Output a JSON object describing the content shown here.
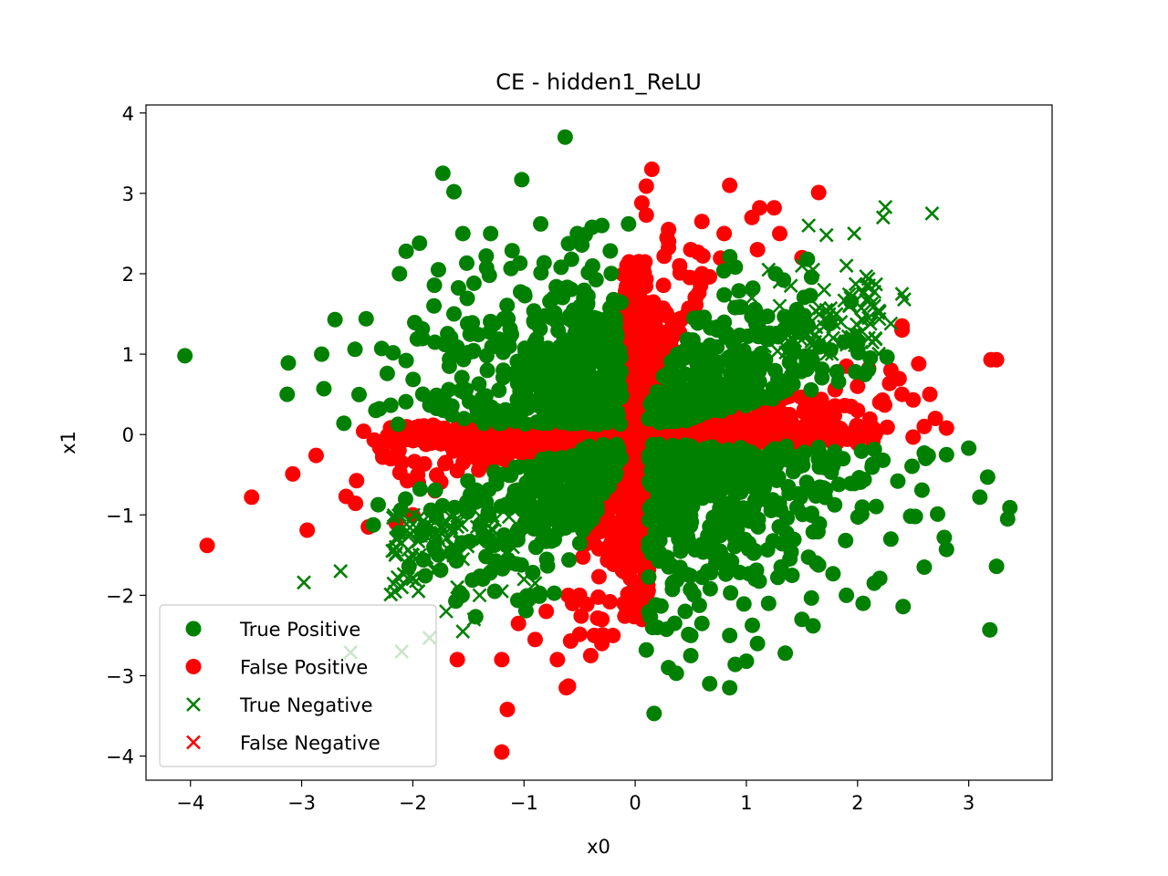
{
  "chart_data": {
    "type": "scatter",
    "title": "CE - hidden1_ReLU",
    "xlabel": "x0",
    "ylabel": "x1",
    "xlim": [
      -4.4,
      3.75
    ],
    "ylim": [
      -4.3,
      4.1
    ],
    "xticks": [
      -4,
      -3,
      -2,
      -1,
      0,
      1,
      2,
      3
    ],
    "yticks": [
      -4,
      -3,
      -2,
      -1,
      0,
      1,
      2,
      3,
      4
    ],
    "xtick_labels": [
      "−4",
      "−3",
      "−2",
      "−1",
      "0",
      "1",
      "2",
      "3"
    ],
    "ytick_labels": [
      "−4",
      "−3",
      "−2",
      "−1",
      "0",
      "1",
      "2",
      "3",
      "4"
    ],
    "grid": false,
    "legend_position": "lower-left",
    "series": [
      {
        "name": "True Positive",
        "marker": "circle",
        "color": "#008000",
        "points": [
          [
            -4.05,
            0.98
          ],
          [
            -0.63,
            3.7
          ],
          [
            -1.73,
            3.25
          ],
          [
            -1.63,
            3.02
          ],
          [
            -1.02,
            3.17
          ],
          [
            -3.12,
            0.89
          ],
          [
            -3.13,
            0.5
          ],
          [
            -2.82,
            1.0
          ],
          [
            -2.7,
            1.43
          ],
          [
            -2.8,
            0.57
          ],
          [
            -2.42,
            1.44
          ],
          [
            -2.62,
            0.14
          ],
          [
            -2.28,
            1.07
          ],
          [
            -2.23,
            0.76
          ],
          [
            -0.85,
            2.62
          ],
          [
            -0.52,
            2.5
          ],
          [
            -1.34,
            2.22
          ],
          [
            -2.06,
            2.28
          ],
          [
            -2.12,
            2.0
          ],
          [
            -1.77,
            2.05
          ],
          [
            -1.94,
            2.38
          ],
          [
            -1.55,
            2.5
          ],
          [
            -1.81,
            1.6
          ],
          [
            -2.3,
            0.32
          ],
          [
            -2.52,
            1.06
          ],
          [
            -2.06,
            0.92
          ],
          [
            -1.3,
            2.5
          ],
          [
            -0.3,
            2.6
          ],
          [
            -0.06,
            2.62
          ],
          [
            3.37,
            -0.91
          ],
          [
            3.25,
            -1.64
          ],
          [
            3.19,
            -2.43
          ],
          [
            3.17,
            -0.53
          ],
          [
            3.1,
            -0.78
          ],
          [
            3.35,
            -1.05
          ],
          [
            3.0,
            -0.17
          ],
          [
            2.8,
            -0.25
          ],
          [
            2.6,
            -0.23
          ],
          [
            2.78,
            -1.28
          ],
          [
            2.8,
            -1.43
          ],
          [
            2.72,
            -0.99
          ],
          [
            2.6,
            -1.65
          ],
          [
            2.41,
            -2.14
          ],
          [
            2.52,
            -1.02
          ],
          [
            2.3,
            -1.3
          ],
          [
            2.2,
            -1.79
          ],
          [
            2.05,
            -2.1
          ],
          [
            1.5,
            -2.3
          ],
          [
            1.35,
            -2.72
          ],
          [
            1.0,
            -2.82
          ],
          [
            0.85,
            -3.15
          ],
          [
            0.9,
            -2.86
          ],
          [
            0.67,
            -3.1
          ],
          [
            0.5,
            -2.75
          ],
          [
            0.3,
            -2.9
          ],
          [
            0.37,
            -2.97
          ],
          [
            0.17,
            -3.47
          ],
          [
            0.1,
            -2.68
          ],
          [
            0.85,
            -2.5
          ],
          [
            1.6,
            -2.38
          ],
          [
            2.15,
            -1.85
          ],
          [
            0.5,
            -2.5
          ],
          [
            0.45,
            -2.2
          ],
          [
            1.9,
            -2.0
          ],
          [
            1.2,
            -2.1
          ],
          [
            0.6,
            -2.35
          ],
          [
            1.1,
            -2.6
          ],
          [
            0.2,
            -2.4
          ]
        ]
      },
      {
        "name": "False Positive",
        "marker": "circle",
        "color": "#ff0000",
        "points": [
          [
            -3.85,
            -1.38
          ],
          [
            -3.45,
            -0.78
          ],
          [
            -3.08,
            -0.49
          ],
          [
            -2.95,
            -1.19
          ],
          [
            -2.87,
            -0.26
          ],
          [
            -2.6,
            -0.77
          ],
          [
            -2.4,
            -1.15
          ],
          [
            -1.2,
            -3.95
          ],
          [
            -1.15,
            -3.42
          ],
          [
            -1.6,
            -2.8
          ],
          [
            -0.6,
            -3.13
          ],
          [
            -0.62,
            -3.15
          ],
          [
            -0.4,
            -2.75
          ],
          [
            -0.3,
            -2.6
          ],
          [
            -0.7,
            -2.8
          ],
          [
            -1.2,
            -2.8
          ],
          [
            -0.9,
            -2.55
          ],
          [
            -0.2,
            -2.5
          ],
          [
            0.15,
            3.3
          ],
          [
            0.1,
            3.09
          ],
          [
            0.85,
            3.1
          ],
          [
            1.65,
            3.01
          ],
          [
            1.05,
            2.7
          ],
          [
            1.25,
            2.82
          ],
          [
            1.12,
            2.82
          ],
          [
            0.6,
            2.65
          ],
          [
            0.3,
            2.55
          ],
          [
            0.06,
            2.88
          ],
          [
            0.1,
            2.73
          ],
          [
            0.6,
            2.0
          ],
          [
            0.4,
            2.1
          ],
          [
            1.1,
            2.3
          ],
          [
            1.3,
            2.5
          ],
          [
            2.4,
            1.3
          ],
          [
            2.4,
            1.35
          ],
          [
            3.2,
            0.93
          ],
          [
            3.25,
            0.93
          ],
          [
            2.55,
            0.88
          ],
          [
            2.4,
            0.5
          ],
          [
            2.5,
            0.43
          ],
          [
            2.7,
            0.2
          ],
          [
            2.8,
            0.08
          ],
          [
            2.6,
            0.1
          ],
          [
            2.65,
            0.5
          ],
          [
            2.2,
            0.4
          ],
          [
            1.9,
            0.85
          ],
          [
            2.1,
            0.82
          ],
          [
            2.3,
            0.8
          ],
          [
            -2.2,
            -0.3
          ],
          [
            -1.95,
            -0.6
          ],
          [
            -2.1,
            -0.35
          ],
          [
            -1.8,
            -0.7
          ],
          [
            -1.6,
            -0.45
          ],
          [
            -1.4,
            -0.3
          ],
          [
            -2.0,
            -1.0
          ],
          [
            -2.15,
            -1.1
          ],
          [
            -0.5,
            -2.0
          ],
          [
            -0.1,
            -2.1
          ],
          [
            -0.3,
            -2.3
          ],
          [
            -0.8,
            -2.2
          ],
          [
            -1.05,
            -2.35
          ],
          [
            0.3,
            2.4
          ],
          [
            0.5,
            2.3
          ],
          [
            0.8,
            2.5
          ],
          [
            1.5,
            2.2
          ],
          [
            2.0,
            0.6
          ],
          [
            2.0,
            0.3
          ]
        ]
      },
      {
        "name": "True Negative",
        "marker": "x",
        "color": "#008000",
        "points": [
          [
            2.25,
            2.83
          ],
          [
            2.67,
            2.75
          ],
          [
            2.23,
            2.7
          ],
          [
            1.97,
            2.5
          ],
          [
            1.56,
            2.6
          ],
          [
            1.72,
            2.48
          ],
          [
            1.9,
            2.1
          ],
          [
            2.4,
            1.75
          ],
          [
            2.42,
            1.68
          ],
          [
            2.3,
            1.38
          ],
          [
            2.1,
            1.45
          ],
          [
            2.15,
            1.6
          ],
          [
            1.95,
            1.72
          ],
          [
            1.7,
            1.8
          ],
          [
            1.6,
            2.05
          ],
          [
            1.5,
            2.1
          ],
          [
            1.85,
            1.4
          ],
          [
            1.78,
            1.2
          ],
          [
            -2.98,
            -1.84
          ],
          [
            -2.65,
            -1.7
          ],
          [
            -2.56,
            -2.71
          ],
          [
            -2.1,
            -2.7
          ],
          [
            -1.85,
            -2.53
          ],
          [
            -1.7,
            -2.2
          ],
          [
            -1.55,
            -2.45
          ],
          [
            -1.45,
            -2.3
          ],
          [
            -2.1,
            -1.9
          ],
          [
            -1.95,
            -1.95
          ],
          [
            -1.8,
            -1.7
          ],
          [
            -2.15,
            -1.3
          ],
          [
            -2.0,
            -1.5
          ],
          [
            -1.85,
            -1.25
          ],
          [
            -1.6,
            -1.9
          ],
          [
            -1.4,
            -2.0
          ],
          [
            -1.2,
            -1.95
          ],
          [
            -1.0,
            -1.8
          ],
          [
            -0.9,
            -1.85
          ],
          [
            -1.3,
            -1.6
          ],
          [
            -1.55,
            -1.55
          ],
          [
            1.3,
            1.9
          ],
          [
            1.4,
            1.85
          ],
          [
            1.2,
            2.05
          ],
          [
            1.05,
            1.7
          ],
          [
            0.9,
            1.6
          ],
          [
            1.3,
            1.6
          ],
          [
            1.5,
            1.3
          ],
          [
            1.65,
            1.1
          ],
          [
            1.95,
            1.15
          ],
          [
            2.1,
            1.2
          ],
          [
            -1.65,
            -1.2
          ],
          [
            -1.35,
            -1.25
          ],
          [
            -1.1,
            -1.4
          ]
        ]
      },
      {
        "name": "False Negative",
        "marker": "x",
        "color": "#ff0000",
        "points": []
      }
    ]
  }
}
